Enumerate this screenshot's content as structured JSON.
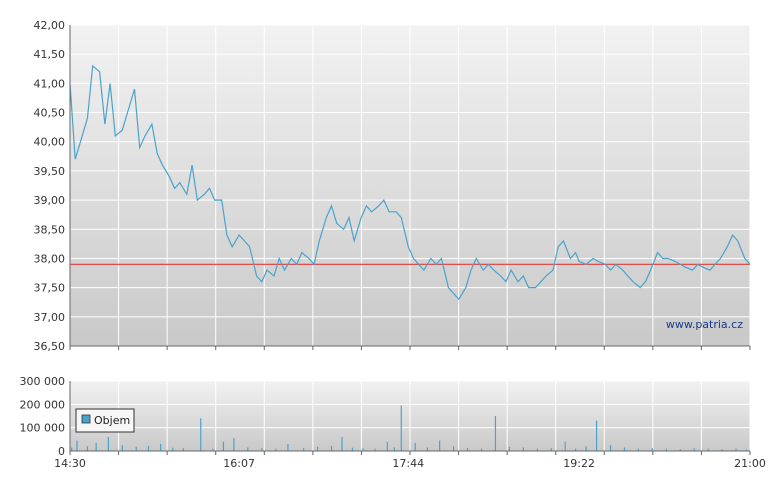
{
  "watermark": "www.patria.cz",
  "colors": {
    "price_line": "#4aa3cc",
    "volume_bar": "#4aa3cc",
    "reference_line": "#e23a3a",
    "grid": "#ffffff",
    "plot_top": "#f2f2f2",
    "plot_bottom": "#c9c9c9",
    "axis": "#666666"
  },
  "chart_data": [
    {
      "type": "line",
      "title": "",
      "xlabel": "",
      "ylabel": "",
      "xlim": [
        "14:30",
        "21:00"
      ],
      "ylim": [
        36.5,
        42.0
      ],
      "y_ticks": [
        "42,00",
        "41,50",
        "41,00",
        "40,50",
        "40,00",
        "39,50",
        "39,00",
        "38,50",
        "38,00",
        "37,50",
        "37,00",
        "36,50"
      ],
      "y_tick_values": [
        42.0,
        41.5,
        41.0,
        40.5,
        40.0,
        39.5,
        39.0,
        38.5,
        38.0,
        37.5,
        37.0,
        36.5
      ],
      "grid": true,
      "reference_line": 37.9,
      "series": [
        {
          "x": [
            "14:30",
            "14:33",
            "14:36",
            "14:40",
            "14:43",
            "14:47",
            "14:50",
            "14:53",
            "14:56",
            "15:00",
            "15:03",
            "15:07",
            "15:10",
            "15:13",
            "15:17",
            "15:20",
            "15:23",
            "15:27",
            "15:30",
            "15:33",
            "15:37",
            "15:40",
            "15:43",
            "15:47",
            "15:50",
            "15:53",
            "15:57",
            "16:00",
            "16:03",
            "16:07",
            "16:10",
            "16:13",
            "16:17",
            "16:20",
            "16:23",
            "16:27",
            "16:30",
            "16:33",
            "16:37",
            "16:40",
            "16:43",
            "16:47",
            "16:50",
            "16:53",
            "16:57",
            "17:00",
            "17:03",
            "17:07",
            "17:10",
            "17:13",
            "17:17",
            "17:20",
            "17:23",
            "17:27",
            "17:30",
            "17:33",
            "17:37",
            "17:40",
            "17:44",
            "17:47",
            "17:50",
            "17:53",
            "17:57",
            "18:00",
            "18:03",
            "18:07",
            "18:10",
            "18:13",
            "18:17",
            "18:20",
            "18:23",
            "18:27",
            "18:30",
            "18:33",
            "18:37",
            "18:40",
            "18:43",
            "18:47",
            "18:50",
            "18:53",
            "18:57",
            "19:00",
            "19:03",
            "19:07",
            "19:10",
            "19:13",
            "19:17",
            "19:20",
            "19:22",
            "19:26",
            "19:30",
            "19:33",
            "19:37",
            "19:40",
            "19:43",
            "19:47",
            "19:50",
            "19:53",
            "19:57",
            "20:00",
            "20:03",
            "20:07",
            "20:10",
            "20:13",
            "20:17",
            "20:20",
            "20:23",
            "20:27",
            "20:30",
            "20:33",
            "20:37",
            "20:40",
            "20:43",
            "20:47",
            "20:50",
            "20:53",
            "20:57",
            "21:00"
          ],
          "y": [
            41.0,
            39.7,
            40.0,
            40.4,
            41.3,
            41.2,
            40.3,
            41.0,
            40.1,
            40.2,
            40.5,
            40.9,
            39.9,
            40.1,
            40.3,
            39.8,
            39.6,
            39.4,
            39.2,
            39.3,
            39.1,
            39.6,
            39.0,
            39.1,
            39.2,
            39.0,
            39.0,
            38.4,
            38.2,
            38.4,
            38.3,
            38.2,
            37.7,
            37.6,
            37.8,
            37.7,
            38.0,
            37.8,
            38.0,
            37.9,
            38.1,
            38.0,
            37.9,
            38.3,
            38.7,
            38.9,
            38.6,
            38.5,
            38.7,
            38.3,
            38.7,
            38.9,
            38.8,
            38.9,
            39.0,
            38.8,
            38.8,
            38.7,
            38.2,
            38.0,
            37.9,
            37.8,
            38.0,
            37.9,
            38.0,
            37.5,
            37.4,
            37.3,
            37.5,
            37.8,
            38.0,
            37.8,
            37.9,
            37.8,
            37.7,
            37.6,
            37.8,
            37.6,
            37.7,
            37.5,
            37.5,
            37.6,
            37.7,
            37.8,
            38.2,
            38.3,
            38.0,
            38.1,
            37.95,
            37.9,
            38.0,
            37.95,
            37.9,
            37.8,
            37.9,
            37.8,
            37.7,
            37.6,
            37.5,
            37.6,
            37.8,
            38.1,
            38.0,
            38.0,
            37.95,
            37.9,
            37.85,
            37.8,
            37.9,
            37.85,
            37.8,
            37.9,
            38.0,
            38.2,
            38.4,
            38.3,
            38.0,
            37.9
          ]
        }
      ]
    },
    {
      "type": "bar",
      "title": "",
      "xlabel": "",
      "ylabel": "",
      "x_ticks": [
        "14:30",
        "16:07",
        "17:44",
        "19:22",
        "21:00"
      ],
      "ylim": [
        0,
        300000
      ],
      "y_ticks": [
        "300 000",
        "200 000",
        "100 000",
        "0"
      ],
      "y_tick_values": [
        300000,
        200000,
        100000,
        0
      ],
      "grid": true,
      "legend": {
        "labels": [
          "Objem"
        ],
        "placement": "top-left"
      },
      "series": [
        {
          "name": "Objem",
          "x": [
            "14:31",
            "14:34",
            "14:40",
            "14:45",
            "14:52",
            "15:00",
            "15:08",
            "15:15",
            "15:22",
            "15:29",
            "15:35",
            "15:45",
            "15:52",
            "15:58",
            "16:04",
            "16:12",
            "16:20",
            "16:28",
            "16:35",
            "16:44",
            "16:52",
            "17:00",
            "17:06",
            "17:12",
            "17:18",
            "17:25",
            "17:32",
            "17:36",
            "17:40",
            "17:48",
            "17:55",
            "18:02",
            "18:10",
            "18:18",
            "18:26",
            "18:34",
            "18:42",
            "18:50",
            "18:58",
            "19:06",
            "19:14",
            "19:20",
            "19:26",
            "19:32",
            "19:40",
            "19:48",
            "19:56",
            "20:04",
            "20:12",
            "20:20",
            "20:28",
            "20:36",
            "20:44",
            "20:52",
            "20:58"
          ],
          "values": [
            15000,
            45000,
            20000,
            35000,
            60000,
            25000,
            18000,
            22000,
            30000,
            14000,
            12000,
            140000,
            10000,
            40000,
            55000,
            15000,
            12000,
            10000,
            30000,
            12000,
            18000,
            22000,
            60000,
            14000,
            12000,
            10000,
            40000,
            15000,
            195000,
            35000,
            15000,
            45000,
            20000,
            12000,
            10000,
            150000,
            18000,
            15000,
            10000,
            12000,
            40000,
            10000,
            20000,
            130000,
            25000,
            15000,
            10000,
            12000,
            10000,
            8000,
            12000,
            10000,
            8000,
            10000,
            6000
          ]
        }
      ]
    }
  ]
}
